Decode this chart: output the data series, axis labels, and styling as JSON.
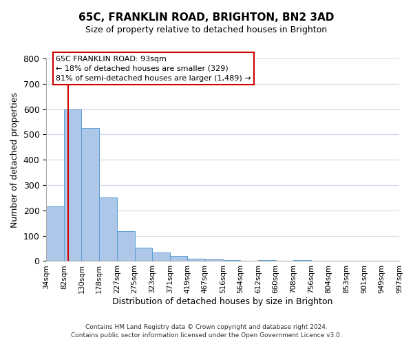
{
  "title": "65C, FRANKLIN ROAD, BRIGHTON, BN2 3AD",
  "subtitle": "Size of property relative to detached houses in Brighton",
  "xlabel": "Distribution of detached houses by size in Brighton",
  "ylabel": "Number of detached properties",
  "footer_line1": "Contains HM Land Registry data © Crown copyright and database right 2024.",
  "footer_line2": "Contains public sector information licensed under the Open Government Licence v3.0.",
  "bin_edges": [
    34,
    82,
    130,
    178,
    227,
    275,
    323,
    371,
    419,
    467,
    516,
    564,
    612,
    660,
    708,
    756,
    804,
    853,
    901,
    949,
    997
  ],
  "bin_labels": [
    "34sqm",
    "82sqm",
    "130sqm",
    "178sqm",
    "227sqm",
    "275sqm",
    "323sqm",
    "371sqm",
    "419sqm",
    "467sqm",
    "516sqm",
    "564sqm",
    "612sqm",
    "660sqm",
    "708sqm",
    "756sqm",
    "804sqm",
    "853sqm",
    "901sqm",
    "949sqm",
    "997sqm"
  ],
  "counts": [
    215,
    600,
    525,
    252,
    117,
    52,
    33,
    20,
    10,
    7,
    5,
    0,
    3,
    0,
    3,
    0,
    0,
    0,
    0,
    0
  ],
  "bar_color": "#aec6e8",
  "bar_edge_color": "#5a9fd4",
  "property_line_x": 93,
  "property_line_color": "#cc0000",
  "annotation_title": "65C FRANKLIN ROAD: 93sqm",
  "annotation_line2": "← 18% of detached houses are smaller (329)",
  "annotation_line3": "81% of semi-detached houses are larger (1,489) →",
  "annotation_box_edge_color": "#cc0000",
  "ylim": [
    0,
    800
  ],
  "yticks": [
    0,
    100,
    200,
    300,
    400,
    500,
    600,
    700,
    800
  ],
  "background_color": "#ffffff",
  "grid_color": "#d0d8e8"
}
